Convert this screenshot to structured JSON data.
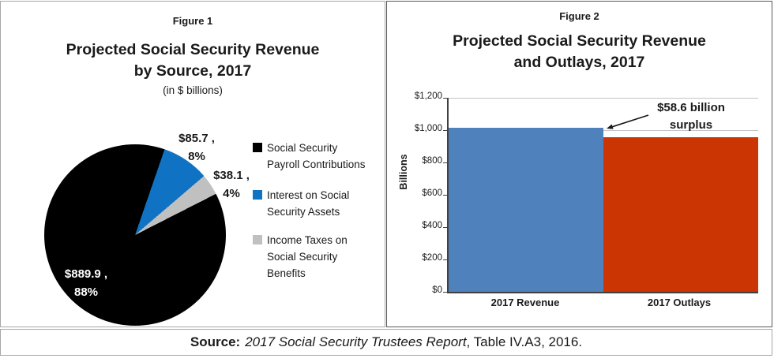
{
  "figure1": {
    "label": "Figure 1",
    "title_line1": "Projected Social Security Revenue",
    "title_line2": "by Source, 2017",
    "subtitle": "(in $ billions)",
    "callouts": [
      {
        "line1": "$85.7 ,",
        "line2": "8%"
      },
      {
        "line1": "$38.1 ,",
        "line2": "4%"
      },
      {
        "line1": "$889.9 ,",
        "line2": "88%"
      }
    ],
    "legend": [
      {
        "line1": "Social Security",
        "line2": "Payroll Contributions"
      },
      {
        "line1": "Interest on Social",
        "line2": "Security Assets"
      },
      {
        "line1": "Income Taxes on",
        "line2": "Social Security",
        "line3": "Benefits"
      }
    ]
  },
  "figure2": {
    "label": "Figure 2",
    "title_line1": "Projected Social Security Revenue",
    "title_line2": "and Outlays, 2017",
    "annotation_line1": "$58.6 billion",
    "annotation_line2": "surplus"
  },
  "source": {
    "prefix": "Source:",
    "italic_part": "2017 Social Security Trustees Report",
    "suffix": ", Table IV.A3, 2016."
  },
  "chart_data": [
    {
      "type": "pie",
      "title": "Projected Social Security Revenue by Source, 2017",
      "subtitle": "(in $ billions)",
      "labels": [
        "Social Security Payroll Contributions",
        "Interest on Social Security Assets",
        "Income Taxes on Social Security Benefits"
      ],
      "values": [
        889.9,
        85.7,
        38.1
      ],
      "percent_labels": [
        "88%",
        "8%",
        "4%"
      ],
      "colors": [
        "#000000",
        "#1072c2",
        "#c0c0c0"
      ],
      "legend_position": "right",
      "start_angle": 19,
      "render_order": [
        1,
        2,
        0
      ]
    },
    {
      "type": "bar",
      "title": "Projected Social Security Revenue and Outlays, 2017",
      "categories": [
        "2017 Revenue",
        "2017 Outlays"
      ],
      "values": [
        1013.7,
        955.1
      ],
      "colors": [
        "#4f81bd",
        "#cb3403"
      ],
      "ylabel": "Billions",
      "ylim": [
        0,
        1200
      ],
      "ytick_step": 200,
      "ytick_labels_desc": [
        "$1,200",
        "$1,000",
        "$800",
        "$600",
        "$400",
        "$200",
        "$0"
      ],
      "annotation": "$58.6 billion surplus",
      "grid": true,
      "legend_position": "none"
    }
  ]
}
